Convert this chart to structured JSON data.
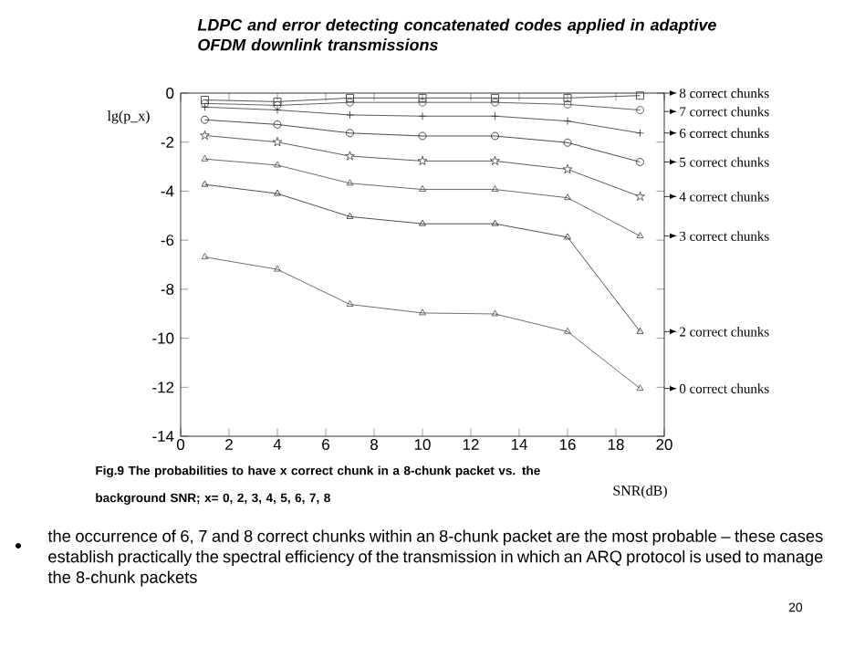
{
  "chart_data": {
    "type": "line",
    "title": "LDPC and error detecting concatenated codes applied in adaptive OFDM downlink transmissions",
    "xlabel": "SNR(dB)",
    "ylabel": "lg(p_x)",
    "x": [
      1,
      4,
      7,
      10,
      13,
      16,
      19
    ],
    "series": [
      {
        "name": "8 correct chunks",
        "color": "#2a2a2a",
        "marker": "square",
        "values": [
          -0.28,
          -0.35,
          -0.2,
          -0.2,
          -0.2,
          -0.2,
          -0.1
        ]
      },
      {
        "name": "7 correct chunks",
        "color": "#3c3c3c",
        "marker": "circle",
        "values": [
          -0.42,
          -0.5,
          -0.38,
          -0.38,
          -0.38,
          -0.46,
          -0.69
        ]
      },
      {
        "name": "6 correct chunks",
        "color": "#303030",
        "marker": "cross",
        "values": [
          -0.57,
          -0.69,
          -0.89,
          -0.94,
          -0.94,
          -1.14,
          -1.63
        ]
      },
      {
        "name": "5 correct chunks",
        "color": "#1e1e1e",
        "marker": "circle",
        "values": [
          -1.09,
          -1.28,
          -1.63,
          -1.75,
          -1.75,
          -2.02,
          -2.81
        ]
      },
      {
        "name": "4 correct chunks",
        "color": "#363636",
        "marker": "star",
        "values": [
          -1.73,
          -2.0,
          -2.57,
          -2.77,
          -2.77,
          -3.11,
          -4.22
        ]
      },
      {
        "name": "3 correct chunks",
        "color": "#444444",
        "marker": "triangle",
        "values": [
          -2.69,
          -2.94,
          -3.68,
          -3.93,
          -3.93,
          -4.27,
          -5.83
        ]
      },
      {
        "name": "2 correct chunks",
        "color": "#242424",
        "marker": "triangle",
        "values": [
          -3.73,
          -4.1,
          -5.04,
          -5.33,
          -5.33,
          -5.88,
          -9.73
        ]
      },
      {
        "name": "0 correct chunks",
        "color": "#4a4a4a",
        "marker": "triangle",
        "values": [
          -6.69,
          -7.19,
          -8.62,
          -8.97,
          -9.01,
          -9.73,
          -12.05
        ]
      }
    ],
    "xlim": [
      0,
      20
    ],
    "xticks": [
      0,
      2,
      4,
      6,
      8,
      10,
      12,
      14,
      16,
      18,
      20
    ],
    "ylim": [
      -14,
      0
    ],
    "yticks": [
      -14,
      -12,
      -10,
      -8,
      -6,
      -4,
      -2,
      0
    ],
    "grid": false,
    "legend": false,
    "annotations": [
      "Fig.9 The probabilities to have x correct chunk in a 8-chunk packet vs.  the background SNR; x= 0, 2, 3, 4, 5, 6, 7, 8",
      "the occurrence of 6, 7 and 8 correct chunks within an 8-chunk packet are the most probable – these cases establish practically the spectral efficiency of the transmission in which an ARQ protocol is used to manage the 8-chunk packets",
      "20"
    ]
  }
}
